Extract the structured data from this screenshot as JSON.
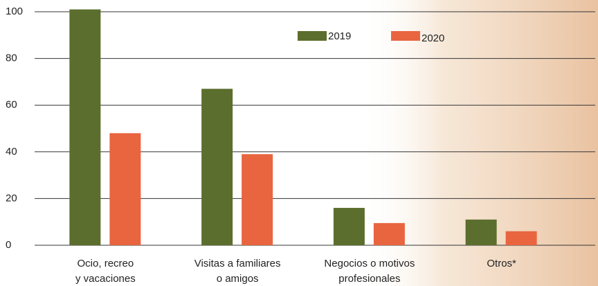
{
  "chart_data": {
    "type": "bar",
    "categories": [
      [
        "Ocio, recreo",
        "y vacaciones"
      ],
      [
        "Visitas a familiares",
        "o amigos"
      ],
      [
        "Negocios o motivos",
        "profesionales"
      ],
      [
        "Otros*"
      ]
    ],
    "series": [
      {
        "name": "2019",
        "color": "#5b6e2d",
        "values": [
          101,
          67,
          16,
          11
        ]
      },
      {
        "name": "2020",
        "color": "#e86540",
        "values": [
          48,
          39,
          9.5,
          6
        ]
      }
    ],
    "ylim": [
      0,
      100
    ],
    "yticks": [
      0,
      20,
      40,
      60,
      80,
      100
    ],
    "grid": true
  }
}
